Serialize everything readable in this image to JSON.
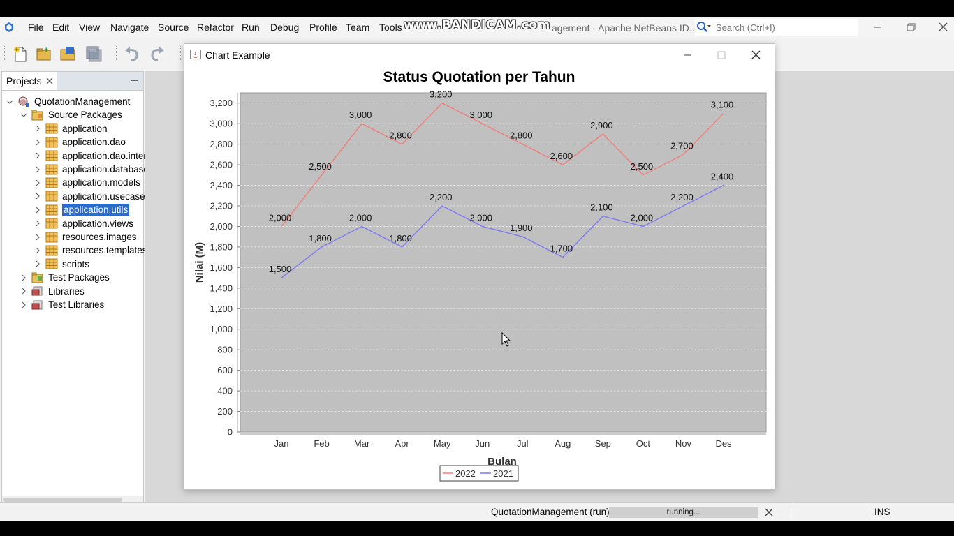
{
  "menubar": {
    "items": [
      "File",
      "Edit",
      "View",
      "Navigate",
      "Source",
      "Refactor",
      "Run",
      "Debug",
      "Profile",
      "Team",
      "Tools"
    ],
    "watermark": "www.BANDICAM.com",
    "title_fragment": "agement - Apache NetBeans ID...",
    "search_placeholder": "Search (Ctrl+I)"
  },
  "projects_panel": {
    "tab_label": "Projects",
    "tree": [
      {
        "label": "QuotationManagement",
        "level": 0,
        "icon": "project-icon",
        "expanded": true
      },
      {
        "label": "Source Packages",
        "level": 1,
        "icon": "source-packages-icon",
        "expanded": true
      },
      {
        "label": "application",
        "level": 2,
        "icon": "package-icon",
        "expanded": false
      },
      {
        "label": "application.dao",
        "level": 2,
        "icon": "package-icon",
        "expanded": false
      },
      {
        "label": "application.dao.inter",
        "level": 2,
        "icon": "package-icon",
        "expanded": false
      },
      {
        "label": "application.database",
        "level": 2,
        "icon": "package-icon",
        "expanded": false
      },
      {
        "label": "application.models",
        "level": 2,
        "icon": "package-icon",
        "expanded": false
      },
      {
        "label": "application.usecases",
        "level": 2,
        "icon": "package-icon",
        "expanded": false
      },
      {
        "label": "application.utils",
        "level": 2,
        "icon": "package-icon",
        "expanded": false,
        "selected": true
      },
      {
        "label": "application.views",
        "level": 2,
        "icon": "package-icon",
        "expanded": false
      },
      {
        "label": "resources.images",
        "level": 2,
        "icon": "package-icon",
        "expanded": false
      },
      {
        "label": "resources.templates",
        "level": 2,
        "icon": "package-icon",
        "expanded": false
      },
      {
        "label": "scripts",
        "level": 2,
        "icon": "package-icon",
        "expanded": false
      },
      {
        "label": "Test Packages",
        "level": 1,
        "icon": "test-packages-icon",
        "expanded": false
      },
      {
        "label": "Libraries",
        "level": 1,
        "icon": "libraries-icon",
        "expanded": false
      },
      {
        "label": "Test Libraries",
        "level": 1,
        "icon": "libraries-icon",
        "expanded": false
      }
    ]
  },
  "chart_window": {
    "title": "Chart Example"
  },
  "chart_data": {
    "type": "line",
    "title": "Status Quotation per Tahun",
    "xlabel": "Bulan",
    "ylabel": "Nilai (M)",
    "categories": [
      "Jan",
      "Feb",
      "Mar",
      "Apr",
      "May",
      "Jun",
      "Jul",
      "Aug",
      "Sep",
      "Oct",
      "Nov",
      "Des"
    ],
    "ylim": [
      0,
      3300
    ],
    "yticks": [
      0,
      200,
      400,
      600,
      800,
      1000,
      1200,
      1400,
      1600,
      1800,
      2000,
      2200,
      2400,
      2600,
      2800,
      3000,
      3200
    ],
    "grid": true,
    "legend_position": "bottom",
    "series": [
      {
        "name": "2022",
        "color": "#f07f78",
        "values": [
          2000,
          2500,
          3000,
          2800,
          3200,
          3000,
          2800,
          2600,
          2900,
          2500,
          2700,
          3100
        ]
      },
      {
        "name": "2021",
        "color": "#7b7bf0",
        "values": [
          1500,
          1800,
          2000,
          1800,
          2200,
          2000,
          1900,
          1700,
          2100,
          2000,
          2200,
          2400
        ]
      }
    ]
  },
  "statusbar": {
    "run_label": "QuotationManagement (run)",
    "progress_label": "running...",
    "insert_mode": "INS"
  }
}
